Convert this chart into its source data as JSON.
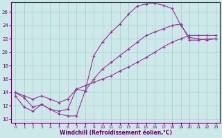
{
  "xlabel": "Windchill (Refroidissement éolien,°C)",
  "background_color": "#cce8e8",
  "grid_color": "#aacccc",
  "line_color": "#993399",
  "xlim": [
    -0.5,
    23.5
  ],
  "ylim": [
    9.5,
    27.5
  ],
  "xticks": [
    0,
    1,
    2,
    3,
    4,
    5,
    6,
    7,
    8,
    9,
    10,
    11,
    12,
    13,
    14,
    15,
    16,
    17,
    18,
    19,
    20,
    21,
    22,
    23
  ],
  "yticks": [
    10,
    12,
    14,
    16,
    18,
    20,
    22,
    24,
    26
  ],
  "curve1_x": [
    0,
    1,
    2,
    3,
    4,
    5,
    6,
    7,
    8,
    9,
    10,
    11,
    12,
    13,
    14,
    15,
    16,
    17,
    18,
    19,
    20,
    21,
    22,
    23
  ],
  "curve1_y": [
    14.0,
    13.2,
    11.8,
    12.2,
    11.5,
    10.8,
    10.5,
    10.5,
    14.2,
    19.5,
    21.5,
    23.0,
    24.2,
    25.7,
    26.9,
    27.2,
    27.3,
    27.0,
    26.5,
    24.0,
    22.2,
    22.0,
    21.8,
    22.0
  ],
  "curve2_x": [
    0,
    1,
    2,
    3,
    4,
    5,
    6,
    7,
    8,
    9,
    10,
    11,
    12,
    13,
    14,
    15,
    16,
    17,
    18,
    19,
    20,
    21,
    22,
    23
  ],
  "curve2_y": [
    14.0,
    13.5,
    13.0,
    13.5,
    13.0,
    12.5,
    13.0,
    14.5,
    15.0,
    15.5,
    16.0,
    16.5,
    17.2,
    17.8,
    18.5,
    19.2,
    20.0,
    20.8,
    21.5,
    22.0,
    22.5,
    22.5,
    22.5,
    22.5
  ],
  "curve3_x": [
    0,
    1,
    2,
    3,
    4,
    5,
    6,
    7,
    8,
    9,
    10,
    11,
    12,
    13,
    14,
    15,
    16,
    17,
    18,
    19,
    20,
    21,
    22,
    23
  ],
  "curve3_y": [
    13.5,
    11.8,
    11.2,
    12.2,
    11.5,
    11.2,
    11.5,
    14.5,
    14.2,
    16.0,
    17.5,
    18.5,
    19.5,
    20.5,
    21.5,
    22.5,
    23.0,
    23.5,
    24.0,
    24.2,
    21.8,
    21.8,
    22.0,
    22.0
  ]
}
